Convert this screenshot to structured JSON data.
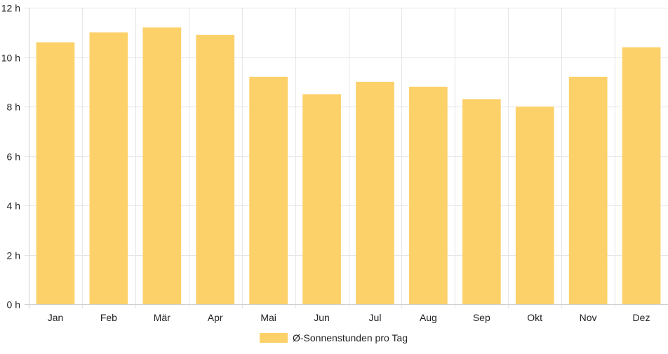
{
  "colors": {
    "bar": "#fdd16a",
    "grid": "#e6e6e6",
    "axis": "#cfcfcf",
    "text": "#222222"
  },
  "chart_data": {
    "type": "bar",
    "categories": [
      "Jan",
      "Feb",
      "Mär",
      "Apr",
      "Mai",
      "Jun",
      "Jul",
      "Aug",
      "Sep",
      "Okt",
      "Nov",
      "Dez"
    ],
    "series": [
      {
        "name": "Ø-Sonnenstunden pro Tag",
        "values": [
          10.6,
          11.0,
          11.2,
          10.9,
          9.2,
          8.5,
          9.0,
          8.8,
          8.3,
          8.0,
          9.2,
          10.4
        ]
      }
    ],
    "ylim": [
      0,
      12
    ],
    "yticks": [
      0,
      2,
      4,
      6,
      8,
      10,
      12
    ],
    "ytick_labels": [
      "0 h",
      "2 h",
      "4 h",
      "6 h",
      "8 h",
      "10 h",
      "12 h"
    ],
    "grid": true,
    "legend_position": "bottom"
  }
}
